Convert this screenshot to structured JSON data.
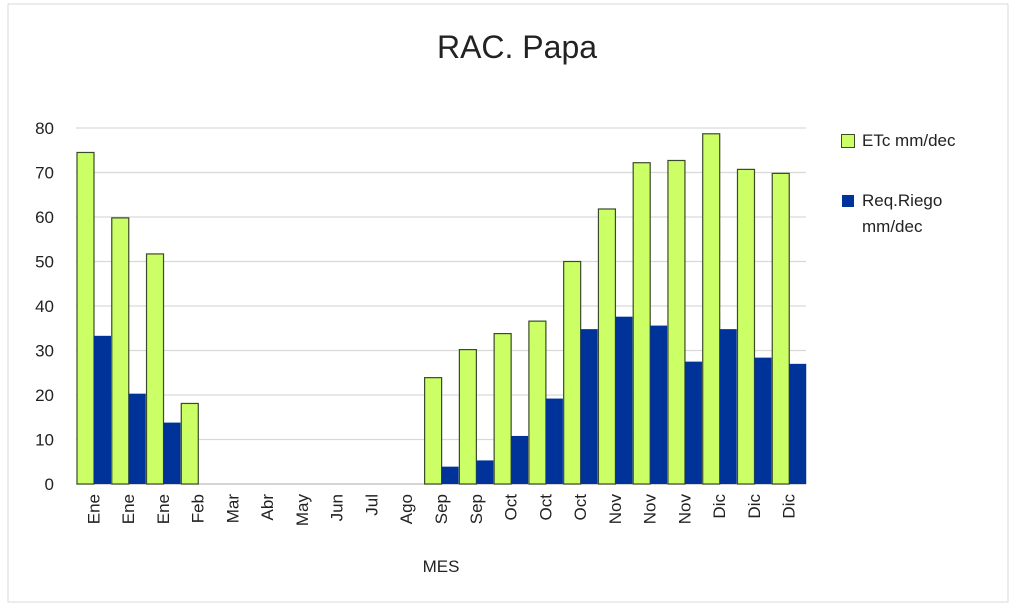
{
  "chart_data": {
    "type": "bar",
    "title": "RAC. Papa",
    "x_label": "MES",
    "categories": [
      "Ene",
      "Ene",
      "Ene",
      "Feb",
      "Mar",
      "Abr",
      "May",
      "Jun",
      "Jul",
      "Ago",
      "Sep",
      "Sep",
      "Oct",
      "Oct",
      "Oct",
      "Nov",
      "Nov",
      "Nov",
      "Dic",
      "Dic",
      "Dic"
    ],
    "series": [
      {
        "name": "ETc mm/dec",
        "color": "#ccff66",
        "values": [
          74.5,
          59.8,
          51.7,
          18.1,
          0,
          0,
          0,
          0,
          0,
          0,
          23.9,
          30.2,
          33.8,
          36.6,
          50,
          61.8,
          72.2,
          72.7,
          78.7,
          70.7,
          69.8
        ]
      },
      {
        "name": "Req.Riego mm/dec",
        "color": "#003399",
        "values": [
          33.3,
          20.3,
          13.8,
          0,
          0,
          0,
          0,
          0,
          0,
          0,
          3.9,
          5.3,
          10.8,
          19.2,
          34.8,
          37.6,
          35.6,
          27.5,
          34.8,
          28.4,
          27.0
        ]
      }
    ],
    "ylim": [
      0,
      80
    ],
    "yticks": [
      0,
      10,
      20,
      30,
      40,
      50,
      60,
      70,
      80
    ],
    "grid": true,
    "legend": "right"
  }
}
